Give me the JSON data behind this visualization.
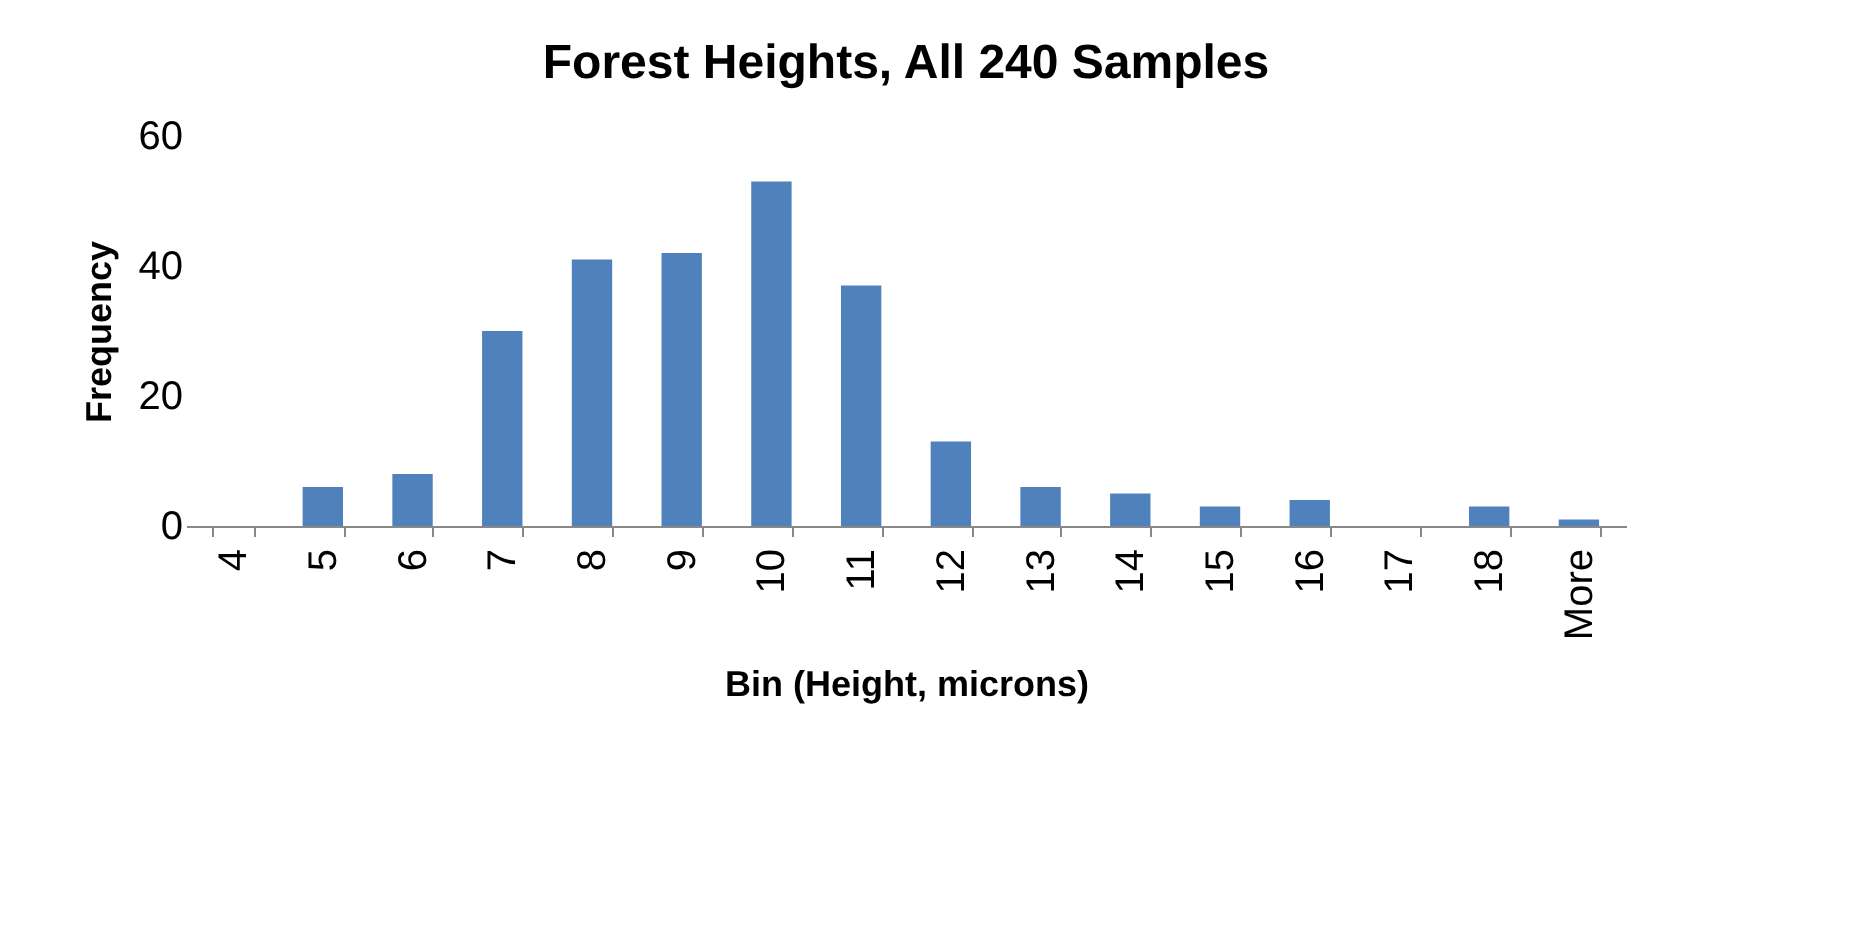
{
  "chart_data": {
    "type": "bar",
    "title": "Forest Heights, All 240 Samples",
    "xlabel": "Bin (Height, microns)",
    "ylabel": "Frequency",
    "categories": [
      "4",
      "5",
      "6",
      "7",
      "8",
      "9",
      "10",
      "11",
      "12",
      "13",
      "14",
      "15",
      "16",
      "17",
      "18",
      "More"
    ],
    "values": [
      0,
      6,
      8,
      30,
      41,
      42,
      53,
      37,
      13,
      6,
      5,
      3,
      4,
      0,
      3,
      1
    ],
    "color": "#4f81bd",
    "ylim": [
      0,
      60
    ],
    "yticks": [
      0,
      20,
      40,
      60
    ],
    "grid": false
  }
}
